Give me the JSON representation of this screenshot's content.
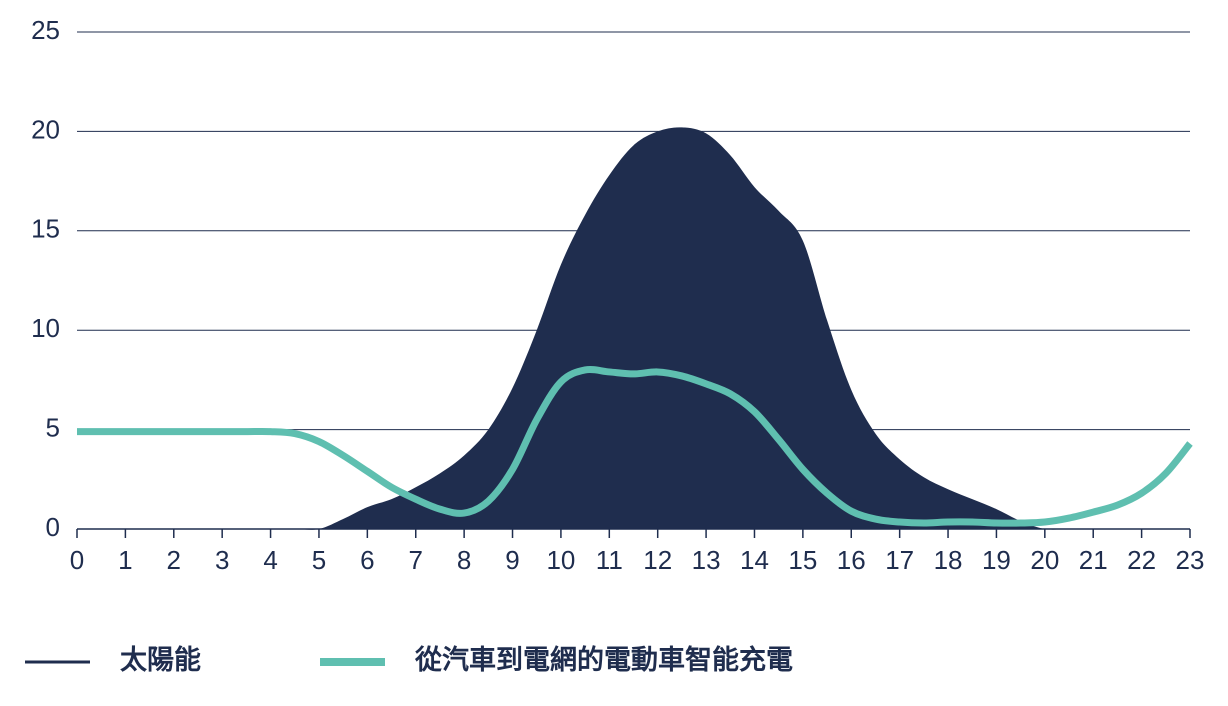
{
  "chart_data": {
    "type": "area",
    "x": [
      0,
      0.5,
      1,
      1.5,
      2,
      2.5,
      3,
      3.5,
      4,
      4.5,
      5,
      5.5,
      6,
      6.5,
      7,
      7.5,
      8,
      8.5,
      9,
      9.5,
      10,
      10.5,
      11,
      11.5,
      12,
      12.5,
      13,
      13.5,
      14,
      14.5,
      15,
      15.5,
      16,
      16.5,
      17,
      17.5,
      18,
      18.5,
      19,
      19.5,
      20,
      20.5,
      21,
      21.5,
      22,
      22.5,
      23
    ],
    "series": [
      {
        "name": "太陽能",
        "type": "area",
        "color": "#1f2d4e",
        "values": [
          0,
          0,
          0,
          0,
          0,
          0,
          0,
          0,
          0,
          0,
          0,
          0.5,
          1.1,
          1.5,
          2.1,
          2.8,
          3.7,
          5.0,
          7.1,
          10.0,
          13.3,
          15.8,
          17.8,
          19.3,
          20.0,
          20.2,
          19.9,
          18.8,
          17.2,
          16.0,
          14.5,
          10.5,
          7.0,
          4.8,
          3.5,
          2.6,
          2.0,
          1.5,
          1.0,
          0.4,
          0,
          0,
          0,
          0,
          0,
          0,
          0
        ]
      },
      {
        "name": "從汽車到電網的電動車智能充電",
        "type": "line",
        "color": "#5fbfb0",
        "values": [
          4.9,
          4.9,
          4.9,
          4.9,
          4.9,
          4.9,
          4.9,
          4.9,
          4.9,
          4.8,
          4.4,
          3.7,
          2.9,
          2.1,
          1.5,
          1.0,
          0.8,
          1.4,
          3.0,
          5.5,
          7.4,
          8.0,
          7.9,
          7.8,
          7.9,
          7.7,
          7.3,
          6.8,
          5.9,
          4.5,
          3.0,
          1.8,
          0.9,
          0.5,
          0.35,
          0.3,
          0.35,
          0.35,
          0.3,
          0.3,
          0.35,
          0.55,
          0.85,
          1.2,
          1.8,
          2.8,
          4.3
        ]
      }
    ],
    "xlim": [
      0,
      23
    ],
    "xticks": [
      0,
      1,
      2,
      3,
      4,
      5,
      6,
      7,
      8,
      9,
      10,
      11,
      12,
      13,
      14,
      15,
      16,
      17,
      18,
      19,
      20,
      21,
      22,
      23
    ],
    "ylim": [
      0,
      25
    ],
    "yticks": [
      0,
      5,
      10,
      15,
      20,
      25
    ],
    "grid": true,
    "legend": "bottom"
  }
}
